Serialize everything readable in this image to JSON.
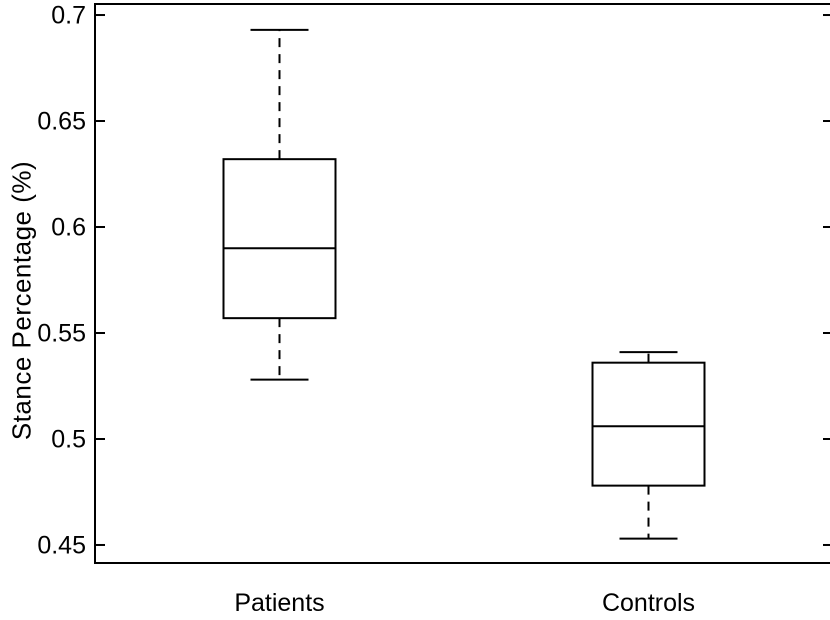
{
  "figure": {
    "background": "#ffffff",
    "stroke_color": "#000000",
    "text_color": "#000000"
  },
  "chart_data": {
    "type": "box",
    "title": "",
    "xlabel": "",
    "ylabel": "Stance Percentage (%)",
    "categories": [
      "Patients",
      "Controls"
    ],
    "series": [
      {
        "name": "Patients",
        "whisker_low": 0.528,
        "q1": 0.557,
        "median": 0.59,
        "q3": 0.632,
        "whisker_high": 0.693
      },
      {
        "name": "Controls",
        "whisker_low": 0.453,
        "q1": 0.478,
        "median": 0.506,
        "q3": 0.536,
        "whisker_high": 0.541
      }
    ],
    "y_ticks": [
      0.7,
      0.65,
      0.6,
      0.55,
      0.5,
      0.45
    ],
    "y_tick_labels": [
      "0.7",
      "0.65",
      "0.6",
      "0.55",
      "0.5",
      "0.45"
    ],
    "ylim": [
      0.4415,
      0.7052
    ],
    "grid": false,
    "legend": null,
    "whisker_style": "dashed",
    "outliers": []
  }
}
